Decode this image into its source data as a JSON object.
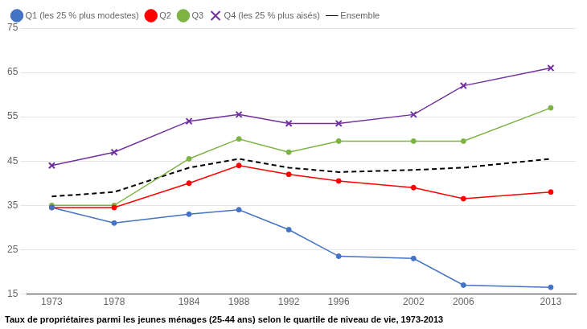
{
  "chart_data": {
    "type": "line",
    "x": [
      1973,
      1978,
      1984,
      1988,
      1992,
      1996,
      2002,
      2006,
      2013
    ],
    "series": [
      {
        "name": "Q1 (les 25 % plus modestes)",
        "color": "#4472C4",
        "marker": "circle",
        "line_style": "solid",
        "values": [
          34.5,
          31.0,
          33.0,
          34.0,
          29.5,
          23.5,
          23.0,
          17.0,
          16.5
        ]
      },
      {
        "name": "Q2",
        "color": "#FF0000",
        "marker": "circle",
        "line_style": "solid",
        "values": [
          34.5,
          34.5,
          40.0,
          44.0,
          42.0,
          40.5,
          39.0,
          36.5,
          38.0
        ]
      },
      {
        "name": "Q3",
        "color": "#7CB342",
        "marker": "circle",
        "line_style": "solid",
        "values": [
          35.0,
          35.0,
          45.5,
          50.0,
          47.0,
          49.5,
          49.5,
          49.5,
          57.0
        ]
      },
      {
        "name": "Q4 (les 25 % plus aisés)",
        "color": "#7030A0",
        "marker": "x",
        "line_style": "solid",
        "values": [
          44.0,
          47.0,
          54.0,
          55.5,
          53.5,
          53.5,
          55.5,
          62.0,
          66.0
        ]
      },
      {
        "name": "Ensemble",
        "color": "#000000",
        "marker": "none",
        "line_style": "dashed",
        "values": [
          37.0,
          38.0,
          43.5,
          45.5,
          43.5,
          42.5,
          43.0,
          43.5,
          45.5
        ]
      }
    ],
    "xlim": [
      1971,
      2015
    ],
    "xticks": [
      1973,
      1978,
      1984,
      1988,
      1992,
      1996,
      2002,
      2006,
      2013
    ],
    "ylim": [
      15,
      75
    ],
    "yticks": [
      15,
      25,
      35,
      45,
      55,
      65,
      75
    ],
    "grid": "y",
    "legend": "upper left",
    "annotations": [
      "Taux de propriétaires parmi les jeunes ménages (25-44 ans) selon le quartile de niveau de vie, 1973-2013"
    ]
  }
}
